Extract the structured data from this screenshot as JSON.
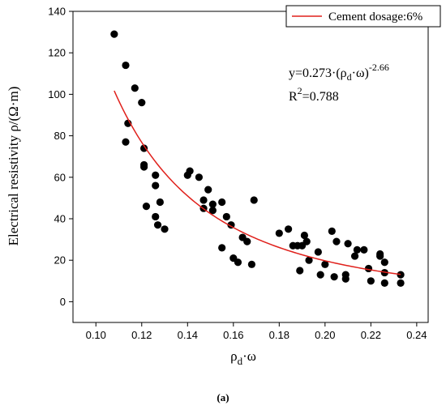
{
  "chart_data": {
    "type": "scatter",
    "xlabel": {
      "base": "ρ",
      "sub": "d",
      "rest": "·ω"
    },
    "ylabel": "Electrical resistivity ρ/(Ω·m)",
    "xlim": [
      0.09,
      0.245
    ],
    "ylim": [
      -10,
      140
    ],
    "x_ticks": [
      0.1,
      0.12,
      0.14,
      0.16,
      0.18,
      0.2,
      0.22,
      0.24
    ],
    "x_tick_labels": [
      "0.10",
      "0.12",
      "0.14",
      "0.16",
      "0.18",
      "0.20",
      "0.22",
      "0.24"
    ],
    "y_ticks": [
      0,
      20,
      40,
      60,
      80,
      100,
      120,
      140
    ],
    "y_tick_labels": [
      "0",
      "20",
      "40",
      "60",
      "80",
      "100",
      "120",
      "140"
    ],
    "legend": {
      "label": "Cement dosage:6%",
      "placement": "top-right"
    },
    "equation": {
      "prefix": "y=0.273·(ρ",
      "sub": "d",
      "mid": "·ω)",
      "sup": "-2.66"
    },
    "r_squared": {
      "base": "R",
      "sup": "2",
      "rest": "=0.788"
    },
    "colors": {
      "points": "#000000",
      "fit": "#e0201b"
    },
    "fit": {
      "a": 0.273,
      "b": -2.66,
      "x_range": [
        0.108,
        0.233
      ]
    },
    "points": [
      [
        0.108,
        129
      ],
      [
        0.113,
        114
      ],
      [
        0.117,
        103
      ],
      [
        0.12,
        96
      ],
      [
        0.114,
        86
      ],
      [
        0.121,
        74
      ],
      [
        0.113,
        77
      ],
      [
        0.121,
        66
      ],
      [
        0.121,
        65
      ],
      [
        0.126,
        61
      ],
      [
        0.126,
        56
      ],
      [
        0.128,
        48
      ],
      [
        0.122,
        46
      ],
      [
        0.126,
        41
      ],
      [
        0.127,
        37
      ],
      [
        0.13,
        35
      ],
      [
        0.141,
        63
      ],
      [
        0.14,
        61
      ],
      [
        0.145,
        60
      ],
      [
        0.149,
        54
      ],
      [
        0.147,
        49
      ],
      [
        0.151,
        47
      ],
      [
        0.155,
        48
      ],
      [
        0.151,
        44
      ],
      [
        0.147,
        45
      ],
      [
        0.157,
        41
      ],
      [
        0.159,
        37
      ],
      [
        0.155,
        26
      ],
      [
        0.16,
        21
      ],
      [
        0.162,
        19
      ],
      [
        0.164,
        31
      ],
      [
        0.166,
        29
      ],
      [
        0.168,
        18
      ],
      [
        0.169,
        49
      ],
      [
        0.18,
        33
      ],
      [
        0.184,
        35
      ],
      [
        0.186,
        27
      ],
      [
        0.188,
        27
      ],
      [
        0.19,
        27
      ],
      [
        0.191,
        32
      ],
      [
        0.192,
        29
      ],
      [
        0.189,
        15
      ],
      [
        0.193,
        20
      ],
      [
        0.197,
        24
      ],
      [
        0.198,
        13
      ],
      [
        0.2,
        18
      ],
      [
        0.203,
        34
      ],
      [
        0.205,
        29
      ],
      [
        0.204,
        12
      ],
      [
        0.209,
        11
      ],
      [
        0.209,
        13
      ],
      [
        0.21,
        28
      ],
      [
        0.213,
        22
      ],
      [
        0.214,
        25
      ],
      [
        0.217,
        25
      ],
      [
        0.219,
        16
      ],
      [
        0.22,
        10
      ],
      [
        0.224,
        22
      ],
      [
        0.224,
        23
      ],
      [
        0.226,
        19
      ],
      [
        0.226,
        14
      ],
      [
        0.226,
        9
      ],
      [
        0.233,
        13
      ],
      [
        0.233,
        9
      ]
    ]
  },
  "caption": "(a)"
}
